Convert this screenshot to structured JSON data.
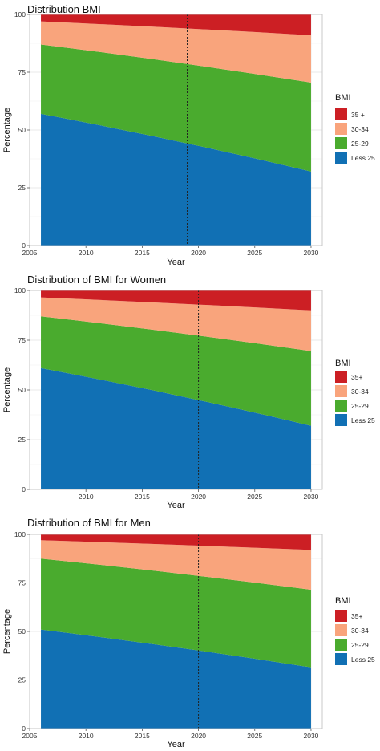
{
  "chart_data": [
    {
      "type": "area",
      "stacked": true,
      "title": "Distribution BMI",
      "xlabel": "Year",
      "ylabel": "Percentage",
      "xlim": [
        2005,
        2031
      ],
      "ylim": [
        0,
        100
      ],
      "xticks": [
        2005,
        2010,
        2015,
        2020,
        2025,
        2030
      ],
      "yticks": [
        0,
        25,
        50,
        75,
        100
      ],
      "grid": true,
      "vline": 2019,
      "legend": {
        "title": "BMI",
        "position": "right",
        "entries": [
          "35 +",
          "30-34",
          "25-29",
          "Less 25"
        ]
      },
      "x": [
        2006,
        2030
      ],
      "series": [
        {
          "name": "Less 25",
          "color": "#1170b4",
          "values": [
            57,
            32
          ]
        },
        {
          "name": "25-29",
          "color": "#4aab2e",
          "values": [
            30,
            38.5
          ]
        },
        {
          "name": "30-34",
          "color": "#f9a47c",
          "values": [
            10,
            20.5
          ]
        },
        {
          "name": "35 +",
          "color": "#cc1f24",
          "values": [
            3,
            9
          ]
        }
      ]
    },
    {
      "type": "area",
      "stacked": true,
      "title": "Distribution of BMI for Women",
      "xlabel": "Year",
      "ylabel": "Percentage",
      "xlim": [
        2005,
        2031
      ],
      "ylim": [
        0,
        100
      ],
      "xticks": [
        2010,
        2015,
        2020,
        2025,
        2030
      ],
      "yticks": [
        0,
        25,
        50,
        75,
        100
      ],
      "grid": true,
      "vline": 2020,
      "legend": {
        "title": "BMI",
        "position": "right",
        "entries": [
          "35+",
          "30-34",
          "25-29",
          "Less 25"
        ]
      },
      "x": [
        2006,
        2030
      ],
      "series": [
        {
          "name": "Less 25",
          "color": "#1170b4",
          "values": [
            61,
            32
          ]
        },
        {
          "name": "25-29",
          "color": "#4aab2e",
          "values": [
            26,
            37.5
          ]
        },
        {
          "name": "30-34",
          "color": "#f9a47c",
          "values": [
            9.5,
            20.5
          ]
        },
        {
          "name": "35+",
          "color": "#cc1f24",
          "values": [
            3.5,
            10
          ]
        }
      ]
    },
    {
      "type": "area",
      "stacked": true,
      "title": "Distribution of BMI for Men",
      "xlabel": "Year",
      "ylabel": "Percentage",
      "xlim": [
        2005,
        2031
      ],
      "ylim": [
        0,
        100
      ],
      "xticks": [
        2005,
        2010,
        2015,
        2020,
        2025,
        2030
      ],
      "yticks": [
        0,
        25,
        50,
        75,
        100
      ],
      "grid": true,
      "vline": 2020,
      "legend": {
        "title": "BMI",
        "position": "right",
        "entries": [
          "35+",
          "30-34",
          "25-29",
          "Less 25"
        ]
      },
      "x": [
        2006,
        2030
      ],
      "series": [
        {
          "name": "Less 25",
          "color": "#1170b4",
          "values": [
            51,
            31.5
          ]
        },
        {
          "name": "25-29",
          "color": "#4aab2e",
          "values": [
            36.5,
            40
          ]
        },
        {
          "name": "30-34",
          "color": "#f9a47c",
          "values": [
            9.5,
            20.5
          ]
        },
        {
          "name": "35+",
          "color": "#cc1f24",
          "values": [
            3,
            8
          ]
        }
      ]
    }
  ]
}
